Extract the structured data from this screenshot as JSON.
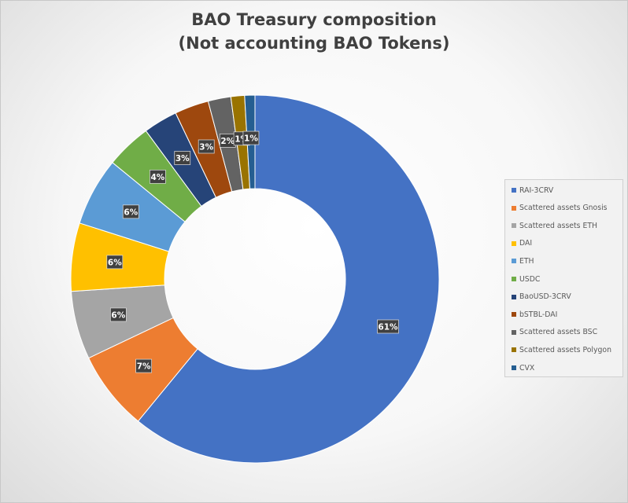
{
  "chart_data": {
    "type": "pie",
    "title_lines": [
      "BAO Treasury composition",
      "(Not accounting BAO Tokens)"
    ],
    "slices": [
      {
        "label": "RAI-3CRV",
        "value": 61,
        "display": "61%",
        "color": "#4472C4"
      },
      {
        "label": "Scattered assets Gnosis",
        "value": 7,
        "display": "7%",
        "color": "#ED7D31"
      },
      {
        "label": "Scattered assets ETH",
        "value": 6,
        "display": "6%",
        "color": "#A5A5A5"
      },
      {
        "label": "DAI",
        "value": 6,
        "display": "6%",
        "color": "#FFC000"
      },
      {
        "label": "ETH",
        "value": 6,
        "display": "6%",
        "color": "#5B9BD5"
      },
      {
        "label": "USDC",
        "value": 4,
        "display": "4%",
        "color": "#70AD47"
      },
      {
        "label": "BaoUSD-3CRV",
        "value": 3,
        "display": "3%",
        "color": "#264478"
      },
      {
        "label": "bSTBL-DAI",
        "value": 3,
        "display": "3%",
        "color": "#9E480E"
      },
      {
        "label": "Scattered assets BSC",
        "value": 2,
        "display": "2%",
        "color": "#636363"
      },
      {
        "label": "Scattered assets Polygon",
        "value": 1.2,
        "display": "1%",
        "color": "#997300"
      },
      {
        "label": "CVX",
        "value": 0.9,
        "display": "1%",
        "color": "#255E91"
      }
    ],
    "donut": true,
    "legend_position": "right"
  }
}
